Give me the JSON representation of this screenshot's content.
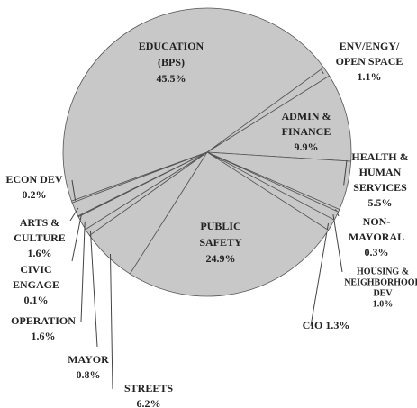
{
  "chart_data": {
    "type": "pie",
    "categories": [
      [
        "EDUCATION",
        "(BPS)"
      ],
      [
        "ENV/ENGY/",
        "OPEN SPACE"
      ],
      [
        "ADMIN &",
        "FINANCE"
      ],
      [
        "HEALTH &",
        "HUMAN",
        "SERVICES"
      ],
      [
        "NON-",
        "MAYORAL"
      ],
      [
        "HOUSING &",
        "NEIGHBORHOOD",
        "DEV"
      ],
      [
        "CIO"
      ],
      [
        "PUBLIC",
        "SAFETY"
      ],
      [
        "STREETS"
      ],
      [
        "MAYOR"
      ],
      [
        "OPERATION"
      ],
      [
        "CIVIC",
        "ENGAGE"
      ],
      [
        "ARTS &",
        "CULTURE"
      ],
      [
        "ECON DEV"
      ]
    ],
    "values": [
      45.5,
      1.1,
      9.9,
      5.5,
      0.3,
      1.0,
      1.3,
      24.9,
      6.2,
      0.8,
      1.6,
      0.1,
      1.6,
      0.2
    ],
    "value_labels": [
      "45.5%",
      "1.1%",
      "9.9%",
      "5.5%",
      "0.3%",
      "1.0%",
      "1.3%",
      "24.9%",
      "6.2%",
      "0.8%",
      "1.6%",
      "0.1%",
      "1.6%",
      "0.2%"
    ],
    "color": "#c8c8c8"
  }
}
